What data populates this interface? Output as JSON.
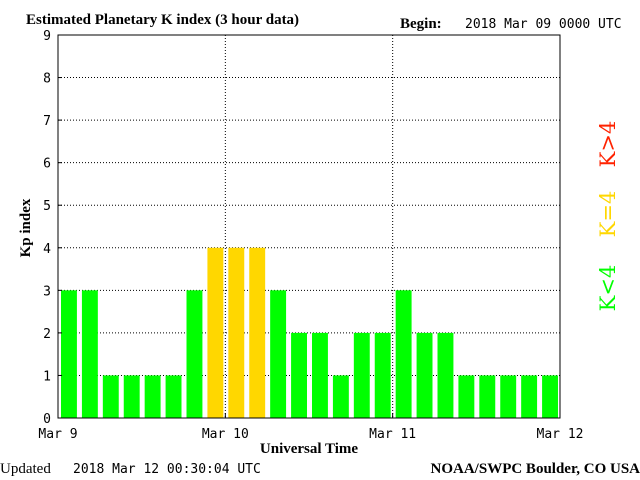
{
  "header": {
    "title": "Estimated Planetary K index (3 hour data)",
    "begin_label": "Begin:",
    "begin_value": "2018 Mar 09 0000 UTC"
  },
  "footer": {
    "updated_label": "Updated",
    "updated_value": "2018 Mar 12 00:30:04 UTC",
    "credit": "NOAA/SWPC Boulder, CO USA"
  },
  "chart_data": {
    "type": "bar",
    "title": "Estimated Planetary K index (3 hour data)",
    "xlabel": "Universal Time",
    "ylabel": "Kp index",
    "ylim": [
      0,
      9
    ],
    "yticks": [
      "0",
      "1",
      "2",
      "3",
      "4",
      "5",
      "6",
      "7",
      "8",
      "9"
    ],
    "xticks": [
      "Mar 9",
      "Mar 10",
      "Mar 11",
      "Mar 12"
    ],
    "grid": true,
    "values": [
      3,
      3,
      1,
      1,
      1,
      1,
      3,
      4,
      4,
      4,
      3,
      2,
      2,
      1,
      2,
      2,
      3,
      2,
      2,
      1,
      1,
      1,
      1,
      1
    ],
    "colors": {
      "below_4": "#00ff00",
      "equal_4": "#ffd700",
      "above_4": "#ff2200"
    },
    "legend": [
      {
        "label": "K<4",
        "color": "#00ff00"
      },
      {
        "label": "K=4",
        "color": "#ffd700"
      },
      {
        "label": "K>4",
        "color": "#ff2200"
      }
    ],
    "legend_placement": "right, vertical"
  }
}
